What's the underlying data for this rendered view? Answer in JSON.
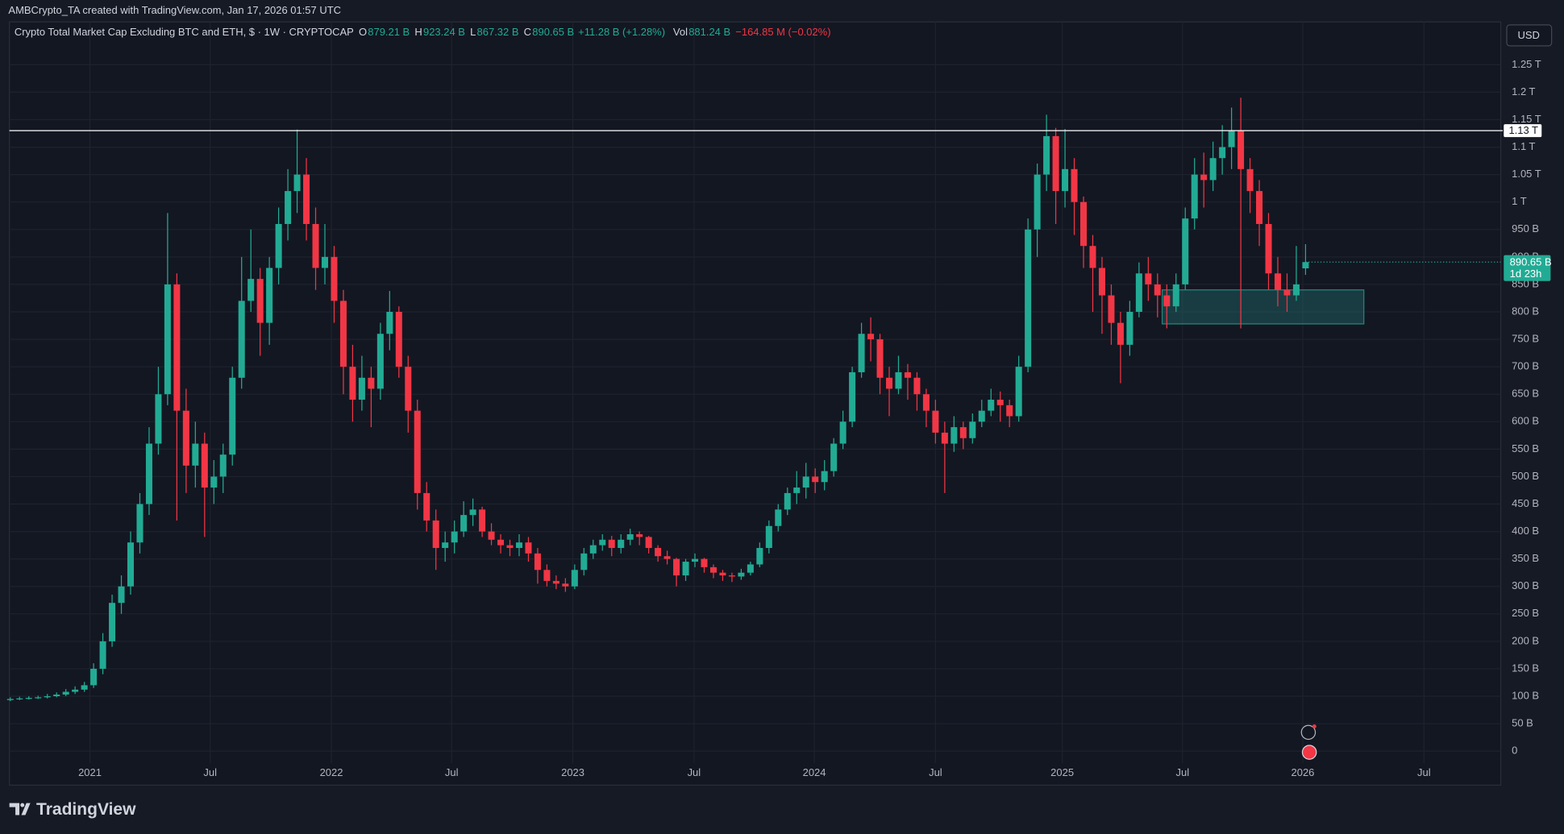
{
  "header": {
    "attribution": "AMBCrypto_TA created with TradingView.com, Jan 17, 2026 01:57 UTC",
    "currency_button": "USD",
    "brand": "TradingView"
  },
  "chart_data": {
    "type": "candlestick",
    "title": "Crypto Total Market Cap Excluding BTC and ETH, $ · 1W · CRYPTOCAP",
    "ohlc_legend": [
      {
        "key": "O",
        "text": "879.21 B"
      },
      {
        "key": "H",
        "text": "923.24 B"
      },
      {
        "key": "L",
        "text": "867.32 B"
      },
      {
        "key": "C",
        "text": "890.65 B"
      }
    ],
    "change_text": "+11.28 B (+1.28%)",
    "volume_legend": {
      "key": "Vol",
      "text": "881.24 B",
      "change": "−164.85 M (−0.02%)"
    },
    "open": [
      93,
      95,
      96,
      97,
      98,
      100,
      103,
      108,
      112,
      120,
      150,
      200,
      270,
      300,
      380,
      450,
      560,
      650,
      850,
      620,
      520,
      560,
      480,
      500,
      540,
      680,
      820,
      860,
      780,
      880,
      960,
      1020,
      1050,
      960,
      880,
      900,
      820,
      700,
      640,
      680,
      660,
      760,
      800,
      700,
      620,
      470,
      420,
      370,
      380,
      400,
      430,
      440,
      400,
      385,
      375,
      370,
      380,
      360,
      330,
      310,
      305,
      300,
      330,
      360,
      375,
      385,
      370,
      385,
      395,
      390,
      370,
      355,
      350,
      320,
      345,
      350,
      335,
      325,
      320,
      318,
      325,
      340,
      370,
      410,
      440,
      470,
      480,
      500,
      490,
      510,
      560,
      600,
      690,
      760,
      750,
      680,
      660,
      690,
      680,
      650,
      620,
      580,
      560,
      590,
      570,
      600,
      620,
      640,
      630,
      610,
      700,
      950,
      1050,
      1120,
      1020,
      1060,
      1000,
      920,
      880,
      830,
      780,
      740,
      800,
      870,
      850,
      830,
      810,
      850,
      970,
      1050,
      1040,
      1080,
      1100,
      1130,
      1060,
      1020,
      960,
      870,
      840,
      830,
      879.21
    ],
    "high": [
      98,
      99,
      100,
      101,
      104,
      107,
      113,
      118,
      126,
      160,
      215,
      285,
      320,
      400,
      470,
      590,
      700,
      980,
      870,
      660,
      600,
      580,
      530,
      560,
      700,
      900,
      950,
      880,
      900,
      990,
      1060,
      1132,
      1080,
      990,
      960,
      920,
      840,
      740,
      720,
      700,
      780,
      838,
      810,
      720,
      640,
      490,
      440,
      400,
      420,
      455,
      460,
      445,
      415,
      395,
      385,
      395,
      390,
      370,
      340,
      320,
      315,
      340,
      370,
      385,
      395,
      392,
      395,
      405,
      400,
      392,
      375,
      365,
      352,
      350,
      360,
      352,
      340,
      330,
      325,
      332,
      345,
      380,
      420,
      450,
      480,
      510,
      525,
      515,
      530,
      570,
      620,
      700,
      780,
      790,
      760,
      700,
      720,
      705,
      690,
      660,
      640,
      600,
      610,
      600,
      615,
      640,
      660,
      655,
      640,
      720,
      970,
      1070,
      1159,
      1135,
      1133,
      1080,
      1010,
      940,
      900,
      850,
      800,
      820,
      890,
      900,
      870,
      850,
      870,
      990,
      1080,
      1090,
      1110,
      1140,
      1172,
      1190,
      1080,
      1040,
      980,
      900,
      870,
      920,
      923.24
    ],
    "low": [
      91,
      93,
      94,
      95,
      96,
      98,
      100,
      104,
      108,
      115,
      140,
      190,
      250,
      285,
      360,
      430,
      540,
      630,
      420,
      470,
      480,
      390,
      450,
      470,
      520,
      660,
      800,
      720,
      740,
      850,
      930,
      980,
      930,
      840,
      850,
      780,
      650,
      600,
      620,
      590,
      640,
      730,
      680,
      580,
      440,
      400,
      330,
      345,
      360,
      390,
      410,
      390,
      375,
      360,
      355,
      355,
      345,
      305,
      300,
      295,
      290,
      295,
      320,
      350,
      365,
      355,
      360,
      375,
      375,
      360,
      345,
      340,
      300,
      310,
      335,
      325,
      315,
      310,
      308,
      312,
      320,
      335,
      360,
      400,
      430,
      450,
      460,
      470,
      475,
      500,
      550,
      590,
      680,
      710,
      650,
      610,
      650,
      640,
      620,
      590,
      560,
      470,
      545,
      550,
      560,
      590,
      610,
      600,
      590,
      600,
      690,
      900,
      1020,
      960,
      990,
      940,
      880,
      800,
      760,
      740,
      670,
      720,
      790,
      820,
      790,
      770,
      800,
      840,
      950,
      990,
      1020,
      1050,
      1060,
      770,
      980,
      920,
      840,
      810,
      800,
      820,
      867.32
    ],
    "close": [
      95,
      96,
      97,
      98,
      100,
      103,
      108,
      112,
      120,
      150,
      200,
      270,
      300,
      380,
      450,
      560,
      650,
      850,
      620,
      520,
      560,
      480,
      500,
      540,
      680,
      820,
      860,
      780,
      880,
      960,
      1020,
      1050,
      960,
      880,
      900,
      820,
      700,
      640,
      680,
      660,
      760,
      800,
      700,
      620,
      470,
      420,
      370,
      380,
      400,
      430,
      440,
      400,
      385,
      375,
      370,
      380,
      360,
      330,
      310,
      305,
      300,
      330,
      360,
      375,
      385,
      370,
      385,
      395,
      390,
      370,
      355,
      350,
      320,
      345,
      350,
      335,
      325,
      320,
      318,
      325,
      340,
      370,
      410,
      440,
      470,
      480,
      500,
      490,
      510,
      560,
      600,
      690,
      760,
      750,
      680,
      660,
      690,
      680,
      650,
      620,
      580,
      560,
      590,
      570,
      600,
      620,
      640,
      630,
      610,
      700,
      950,
      1050,
      1120,
      1020,
      1060,
      1000,
      920,
      880,
      830,
      780,
      740,
      800,
      870,
      850,
      830,
      810,
      850,
      970,
      1050,
      1040,
      1080,
      1100,
      1130,
      1060,
      1020,
      960,
      870,
      840,
      830,
      850,
      890.65
    ],
    "up_color": "#22ab94",
    "down_color": "#f23645",
    "xlim": [
      -0.1,
      161.1
    ],
    "xticks": [
      {
        "value": 8.6,
        "label": "2021"
      },
      {
        "value": 21.6,
        "label": "Jul"
      },
      {
        "value": 34.7,
        "label": "2022"
      },
      {
        "value": 47.7,
        "label": "Jul"
      },
      {
        "value": 60.8,
        "label": "2023"
      },
      {
        "value": 73.9,
        "label": "Jul"
      },
      {
        "value": 86.9,
        "label": "2024"
      },
      {
        "value": 100,
        "label": "Jul"
      },
      {
        "value": 113.7,
        "label": "2025"
      },
      {
        "value": 126.7,
        "label": "Jul"
      },
      {
        "value": 139.7,
        "label": "2026"
      },
      {
        "value": 152.8,
        "label": "Jul"
      }
    ],
    "ylim": [
      -62,
      1328
    ],
    "yticks": [
      0,
      {
        "value": 50,
        "label": "50 B"
      },
      {
        "value": 100,
        "label": "100 B"
      },
      {
        "value": 150,
        "label": "150 B"
      },
      {
        "value": 200,
        "label": "200 B"
      },
      {
        "value": 250,
        "label": "250 B"
      },
      {
        "value": 300,
        "label": "300 B"
      },
      {
        "value": 350,
        "label": "350 B"
      },
      {
        "value": 400,
        "label": "400 B"
      },
      {
        "value": 450,
        "label": "450 B"
      },
      {
        "value": 500,
        "label": "500 B"
      },
      {
        "value": 550,
        "label": "550 B"
      },
      {
        "value": 600,
        "label": "600 B"
      },
      {
        "value": 650,
        "label": "650 B"
      },
      {
        "value": 700,
        "label": "700 B"
      },
      {
        "value": 750,
        "label": "750 B"
      },
      {
        "value": 800,
        "label": "800 B"
      },
      {
        "value": 850,
        "label": "850 B"
      },
      {
        "value": 900,
        "label": "900 B"
      },
      {
        "value": 950,
        "label": "950 B"
      },
      {
        "value": 1000,
        "label": "1 T"
      },
      {
        "value": 1050,
        "label": "1.05 T"
      },
      {
        "value": 1100,
        "label": "1.1 T"
      },
      {
        "value": 1150,
        "label": "1.15 T"
      },
      {
        "value": 1200,
        "label": "1.2 T"
      },
      {
        "value": 1250,
        "label": "1.25 T"
      }
    ],
    "grid": true,
    "horizontal_line": {
      "value": 1130,
      "label": "1.13 T",
      "color": "#ffffff"
    },
    "zone": {
      "x": [
        124.5,
        146.3
      ],
      "y": [
        778,
        840
      ],
      "color": "#1f6b6b"
    },
    "last_price": {
      "value": 890.65,
      "label": "890.65 B",
      "countdown": "1d 23h"
    }
  }
}
